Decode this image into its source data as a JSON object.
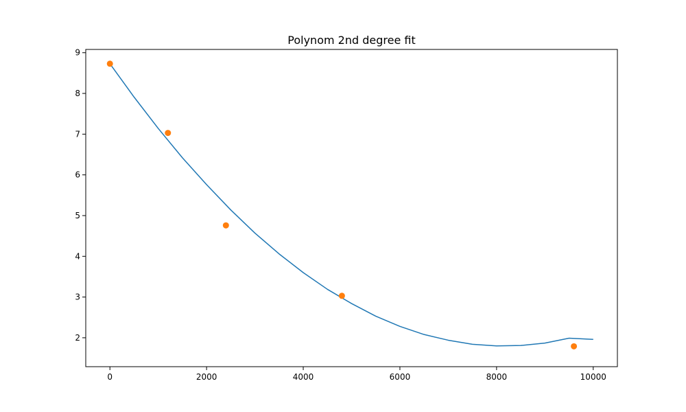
{
  "chart_data": {
    "type": "line",
    "title": "Polynom 2nd degree fit",
    "xlabel": "",
    "ylabel": "",
    "xlim": [
      -500,
      10500
    ],
    "ylim": [
      1.29,
      9.08
    ],
    "x_ticks": [
      0,
      2000,
      4000,
      6000,
      8000,
      10000
    ],
    "x_tick_labels": [
      "0",
      "2000",
      "4000",
      "6000",
      "8000",
      "10000"
    ],
    "y_ticks": [
      2,
      3,
      4,
      5,
      6,
      7,
      8,
      9
    ],
    "y_tick_labels": [
      "2",
      "3",
      "4",
      "5",
      "6",
      "7",
      "8",
      "9"
    ],
    "grid": false,
    "legend": "none",
    "series": [
      {
        "type": "line",
        "color": "#1f77b4",
        "x": [
          0,
          500,
          1000,
          1500,
          2000,
          2500,
          3000,
          3500,
          4000,
          4500,
          5000,
          5500,
          6000,
          6500,
          7000,
          7500,
          8000,
          8500,
          9000,
          9500,
          10000
        ],
        "y": [
          8.73,
          7.91,
          7.14,
          6.42,
          5.76,
          5.14,
          4.57,
          4.06,
          3.6,
          3.19,
          2.84,
          2.53,
          2.28,
          2.08,
          1.94,
          1.84,
          1.8,
          1.81,
          1.87,
          1.99,
          1.96
        ]
      },
      {
        "type": "scatter",
        "color": "#ff7f0e",
        "x": [
          0,
          1200,
          2400,
          4800,
          9600
        ],
        "y": [
          8.73,
          7.03,
          4.76,
          3.03,
          1.79
        ]
      }
    ]
  }
}
